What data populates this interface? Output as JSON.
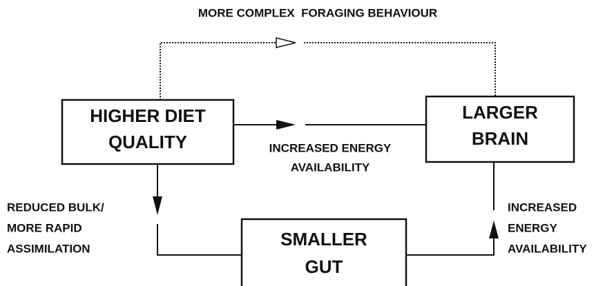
{
  "title": "MORE COMPLEX  FORAGING BEHAVIOUR",
  "nodes": [
    {
      "lines": [
        "HIGHER DIET",
        "QUALITY"
      ]
    },
    {
      "lines": [
        "LARGER",
        "BRAIN"
      ]
    },
    {
      "lines": [
        "SMALLER",
        "GUT"
      ]
    }
  ],
  "edges": [
    {
      "lines": [
        "INCREASED ENERGY",
        "AVAILABILITY"
      ]
    },
    {
      "lines": [
        "REDUCED BULK/",
        "MORE RAPID",
        "ASSIMILATION"
      ]
    },
    {
      "lines": [
        "INCREASED",
        "ENERGY",
        "AVAILABILITY"
      ]
    }
  ]
}
